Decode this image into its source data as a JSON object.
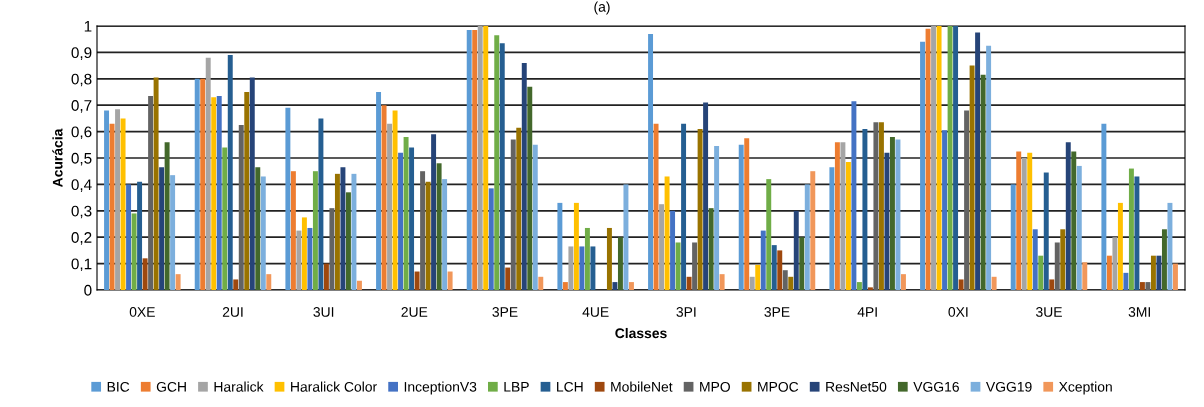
{
  "chart_data": {
    "type": "bar",
    "title": "(a)",
    "xlabel": "Classes",
    "ylabel": "Acurácia",
    "categories": [
      "0XE",
      "2UI",
      "3UI",
      "2UE",
      "3PE",
      "4UE",
      "3PI",
      "3PE",
      "4PI",
      "0XI",
      "3UE",
      "3MI"
    ],
    "series": [
      {
        "name": "BIC",
        "color": "#5b9bd5",
        "values": [
          0.68,
          0.8,
          0.69,
          0.75,
          0.985,
          0.33,
          0.97,
          0.55,
          0.465,
          0.94,
          0.4,
          0.63
        ]
      },
      {
        "name": "GCH",
        "color": "#ed7d31",
        "values": [
          0.63,
          0.8,
          0.45,
          0.7,
          0.985,
          0.03,
          0.63,
          0.575,
          0.56,
          0.99,
          0.525,
          0.13
        ]
      },
      {
        "name": "Haralick",
        "color": "#a5a5a5",
        "values": [
          0.685,
          0.88,
          0.225,
          0.63,
          1.0,
          0.165,
          0.325,
          0.05,
          0.56,
          1.0,
          0.5,
          0.2
        ]
      },
      {
        "name": "Haralick Color",
        "color": "#ffc000",
        "values": [
          0.65,
          0.73,
          0.275,
          0.68,
          1.0,
          0.33,
          0.43,
          0.095,
          0.485,
          1.0,
          0.52,
          0.33
        ]
      },
      {
        "name": "InceptionV3",
        "color": "#4472c4",
        "values": [
          0.4,
          0.735,
          0.235,
          0.52,
          0.385,
          0.165,
          0.3,
          0.225,
          0.715,
          0.605,
          0.23,
          0.065
        ]
      },
      {
        "name": "LBP",
        "color": "#70ad47",
        "values": [
          0.29,
          0.54,
          0.45,
          0.58,
          0.965,
          0.235,
          0.18,
          0.42,
          0.03,
          1.0,
          0.13,
          0.46
        ]
      },
      {
        "name": "LCH",
        "color": "#255e91",
        "values": [
          0.41,
          0.89,
          0.65,
          0.54,
          0.935,
          0.165,
          0.63,
          0.17,
          0.61,
          1.0,
          0.445,
          0.43
        ]
      },
      {
        "name": "MobileNet",
        "color": "#9e480e",
        "values": [
          0.12,
          0.04,
          0.1,
          0.07,
          0.085,
          0,
          0.05,
          0.15,
          0.01,
          0.04,
          0.04,
          0.03
        ]
      },
      {
        "name": "MPO",
        "color": "#636363",
        "values": [
          0.735,
          0.625,
          0.31,
          0.45,
          0.57,
          0,
          0.18,
          0.075,
          0.635,
          0.68,
          0.18,
          0.03
        ]
      },
      {
        "name": "MPOC",
        "color": "#997300",
        "values": [
          0.805,
          0.75,
          0.44,
          0.41,
          0.615,
          0.235,
          0.61,
          0.05,
          0.635,
          0.85,
          0.23,
          0.13
        ]
      },
      {
        "name": "ResNet50",
        "color": "#264478",
        "values": [
          0.465,
          0.805,
          0.465,
          0.59,
          0.86,
          0.03,
          0.71,
          0.3,
          0.52,
          0.975,
          0.56,
          0.13
        ]
      },
      {
        "name": "VGG16",
        "color": "#43682b",
        "values": [
          0.56,
          0.465,
          0.37,
          0.48,
          0.77,
          0.2,
          0.31,
          0.2,
          0.58,
          0.815,
          0.525,
          0.23
        ]
      },
      {
        "name": "VGG19",
        "color": "#7cafdd",
        "values": [
          0.435,
          0.43,
          0.44,
          0.42,
          0.55,
          0.4,
          0.545,
          0.4,
          0.57,
          0.925,
          0.47,
          0.33
        ]
      },
      {
        "name": "Xception",
        "color": "#f1975a",
        "values": [
          0.06,
          0.06,
          0.035,
          0.07,
          0.05,
          0.03,
          0.06,
          0.45,
          0.06,
          0.05,
          0.105,
          0.1
        ]
      }
    ],
    "ylim": [
      0,
      1
    ],
    "yticks": [
      0,
      {
        "value": 0.1,
        "label": "0,1"
      },
      {
        "value": 0.2,
        "label": "0,2"
      },
      {
        "value": 0.3,
        "label": "0,3"
      },
      {
        "value": 0.4,
        "label": "0,4"
      },
      {
        "value": 0.5,
        "label": "0,5"
      },
      {
        "value": 0.6,
        "label": "0,6"
      },
      {
        "value": 0.7,
        "label": "0,7"
      },
      {
        "value": 0.8,
        "label": "0,8"
      },
      {
        "value": 0.9,
        "label": "0,9"
      },
      1
    ],
    "grid": "y",
    "legend": "bottom"
  }
}
